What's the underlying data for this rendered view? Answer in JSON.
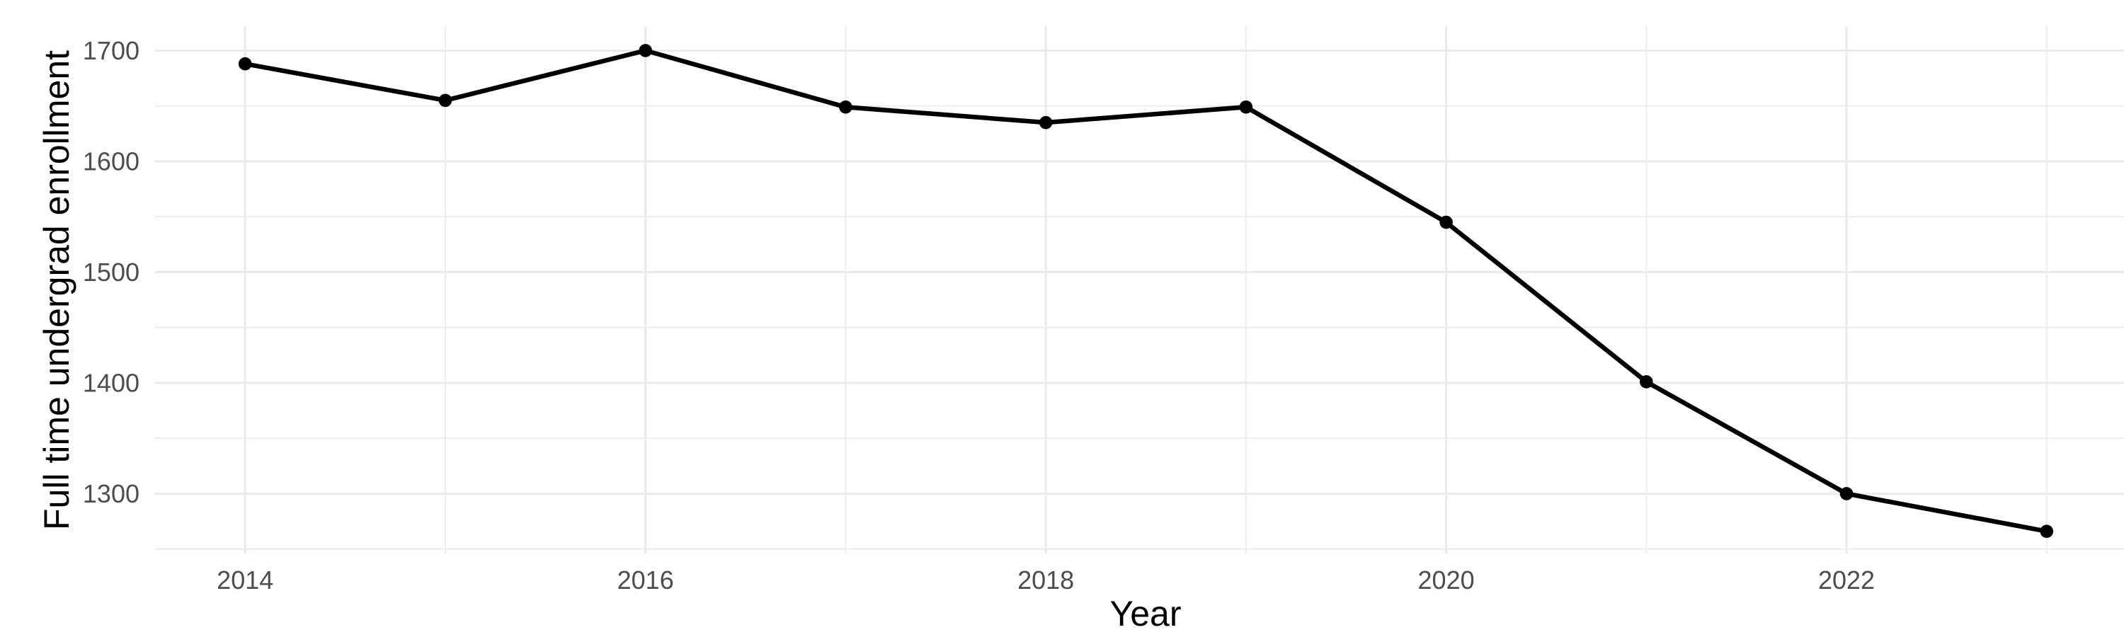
{
  "chart_data": {
    "type": "line",
    "title": "",
    "xlabel": "Year",
    "ylabel": "Full time undergrad enrollment",
    "x": [
      2014,
      2015,
      2016,
      2017,
      2018,
      2019,
      2020,
      2021,
      2022,
      2023
    ],
    "series": [
      {
        "name": "Full time undergrad enrollment",
        "values": [
          1688,
          1655,
          1700,
          1649,
          1635,
          1649,
          1545,
          1401,
          1300,
          1266
        ]
      }
    ],
    "x_ticks": [
      2014,
      2016,
      2018,
      2020,
      2022
    ],
    "x_minor_breaks": [
      2015,
      2017,
      2019,
      2021,
      2023
    ],
    "y_ticks": [
      1300,
      1400,
      1500,
      1600,
      1700
    ],
    "y_minor_breaks": [
      1250,
      1350,
      1450,
      1550,
      1650
    ],
    "xlim": [
      2013.55,
      2023.45
    ],
    "ylim": [
      1246,
      1722
    ],
    "grid": true,
    "legend": false,
    "point_marker": "filled-circle",
    "colors": {
      "line": "#000000",
      "point": "#000000",
      "grid": "#EBEBEB",
      "tick_label": "#4D4D4D",
      "axis_title": "#000000",
      "background": "#FFFFFF"
    }
  }
}
